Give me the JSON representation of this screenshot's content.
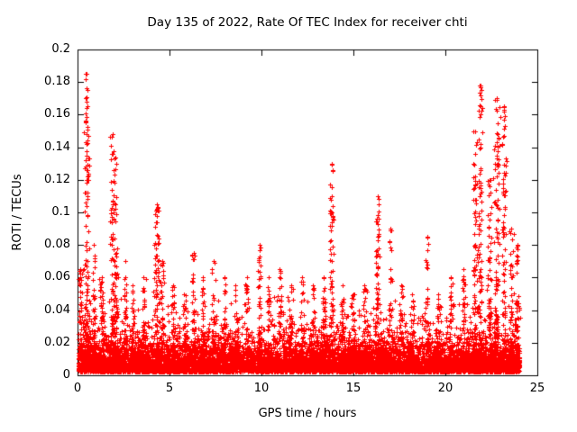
{
  "colors": {
    "background": "#ffffff",
    "axis": "#000000",
    "marker": "#ff0000"
  },
  "chart_data": {
    "type": "scatter",
    "title": "Day 135 of 2022, Rate Of TEC Index for receiver chti",
    "xlabel": "GPS time / hours",
    "ylabel": "ROTI / TECUs",
    "xlim": [
      0,
      25
    ],
    "ylim": [
      0,
      0.2
    ],
    "grid": false,
    "legend": "none",
    "xticks": [
      0,
      5,
      10,
      15,
      20,
      25
    ],
    "xtick_labels": [
      "0",
      "5",
      "10",
      "15",
      "20",
      "25"
    ],
    "yticks": [
      0,
      0.02,
      0.04,
      0.06,
      0.08,
      0.1,
      0.12,
      0.14,
      0.16,
      0.18,
      0.2
    ],
    "ytick_labels": [
      "0",
      "0.02",
      "0.04",
      "0.06",
      "0.08",
      "0.1",
      "0.12",
      "0.14",
      "0.16",
      "0.18",
      "0.2"
    ],
    "marker": {
      "shape": "plus",
      "color": "#ff0000",
      "size": 5
    },
    "seed": 42,
    "baseline": {
      "comment": "dense band of ROTI values along full day, mostly below 0.03 TECU",
      "x_range": [
        0.02,
        24.05
      ],
      "count": 9000,
      "y_min": 0.002,
      "y_scale": 0.0075,
      "y_cap": 0.048
    },
    "spike_format": [
      "x_hours",
      "x_spread",
      "point_count",
      "peak_roti"
    ],
    "spikes": [
      [
        0.15,
        0.1,
        40,
        0.065
      ],
      [
        0.5,
        0.15,
        120,
        0.185
      ],
      [
        0.9,
        0.1,
        40,
        0.08
      ],
      [
        1.3,
        0.1,
        30,
        0.06
      ],
      [
        1.9,
        0.15,
        80,
        0.148
      ],
      [
        2.1,
        0.1,
        40,
        0.13
      ],
      [
        2.6,
        0.1,
        30,
        0.07
      ],
      [
        3.0,
        0.1,
        30,
        0.055
      ],
      [
        3.6,
        0.1,
        30,
        0.06
      ],
      [
        4.3,
        0.15,
        70,
        0.105
      ],
      [
        4.6,
        0.1,
        30,
        0.07
      ],
      [
        5.2,
        0.1,
        25,
        0.055
      ],
      [
        5.8,
        0.1,
        25,
        0.05
      ],
      [
        6.3,
        0.1,
        30,
        0.075
      ],
      [
        6.8,
        0.1,
        25,
        0.06
      ],
      [
        7.4,
        0.1,
        30,
        0.07
      ],
      [
        8.0,
        0.1,
        25,
        0.06
      ],
      [
        8.6,
        0.1,
        25,
        0.055
      ],
      [
        9.2,
        0.1,
        25,
        0.06
      ],
      [
        9.9,
        0.1,
        35,
        0.08
      ],
      [
        10.4,
        0.1,
        25,
        0.06
      ],
      [
        11.0,
        0.1,
        25,
        0.065
      ],
      [
        11.6,
        0.1,
        25,
        0.055
      ],
      [
        12.2,
        0.1,
        25,
        0.06
      ],
      [
        12.8,
        0.1,
        25,
        0.055
      ],
      [
        13.4,
        0.1,
        30,
        0.06
      ],
      [
        13.8,
        0.12,
        70,
        0.13
      ],
      [
        14.4,
        0.1,
        25,
        0.055
      ],
      [
        15.0,
        0.1,
        25,
        0.05
      ],
      [
        15.6,
        0.1,
        25,
        0.055
      ],
      [
        16.3,
        0.12,
        60,
        0.11
      ],
      [
        17.0,
        0.1,
        30,
        0.09
      ],
      [
        17.6,
        0.1,
        25,
        0.055
      ],
      [
        18.2,
        0.1,
        25,
        0.05
      ],
      [
        19.0,
        0.1,
        35,
        0.085
      ],
      [
        19.6,
        0.1,
        25,
        0.05
      ],
      [
        20.3,
        0.1,
        30,
        0.06
      ],
      [
        21.0,
        0.1,
        30,
        0.065
      ],
      [
        21.6,
        0.12,
        70,
        0.15
      ],
      [
        21.9,
        0.12,
        80,
        0.178
      ],
      [
        22.4,
        0.12,
        60,
        0.12
      ],
      [
        22.8,
        0.15,
        100,
        0.17
      ],
      [
        23.2,
        0.12,
        80,
        0.165
      ],
      [
        23.6,
        0.1,
        40,
        0.09
      ],
      [
        23.9,
        0.08,
        40,
        0.08
      ]
    ]
  }
}
